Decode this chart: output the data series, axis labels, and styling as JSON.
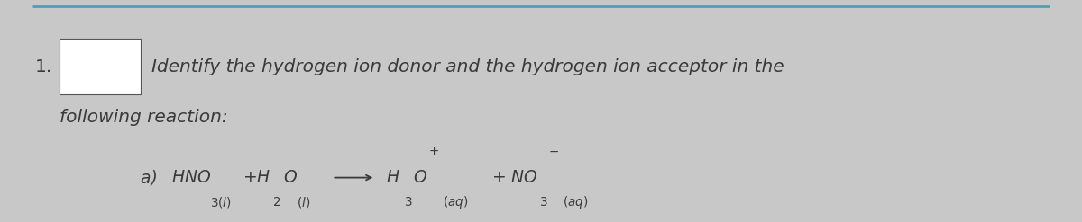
{
  "background_color": "#c8c8c8",
  "line_color": "#5a9ab5",
  "number_text": "1.",
  "box_color": "white",
  "box_edge_color": "#555555",
  "main_text": "Identify the hydrogen ion donor and the hydrogen ion acceptor in the",
  "main_text2": "following reaction:",
  "main_fontsize": 14.5,
  "eq_label": "a) ",
  "equation_fontsize": 13.5,
  "text_color": "#3a3a3a",
  "font_family": "DejaVu Sans"
}
